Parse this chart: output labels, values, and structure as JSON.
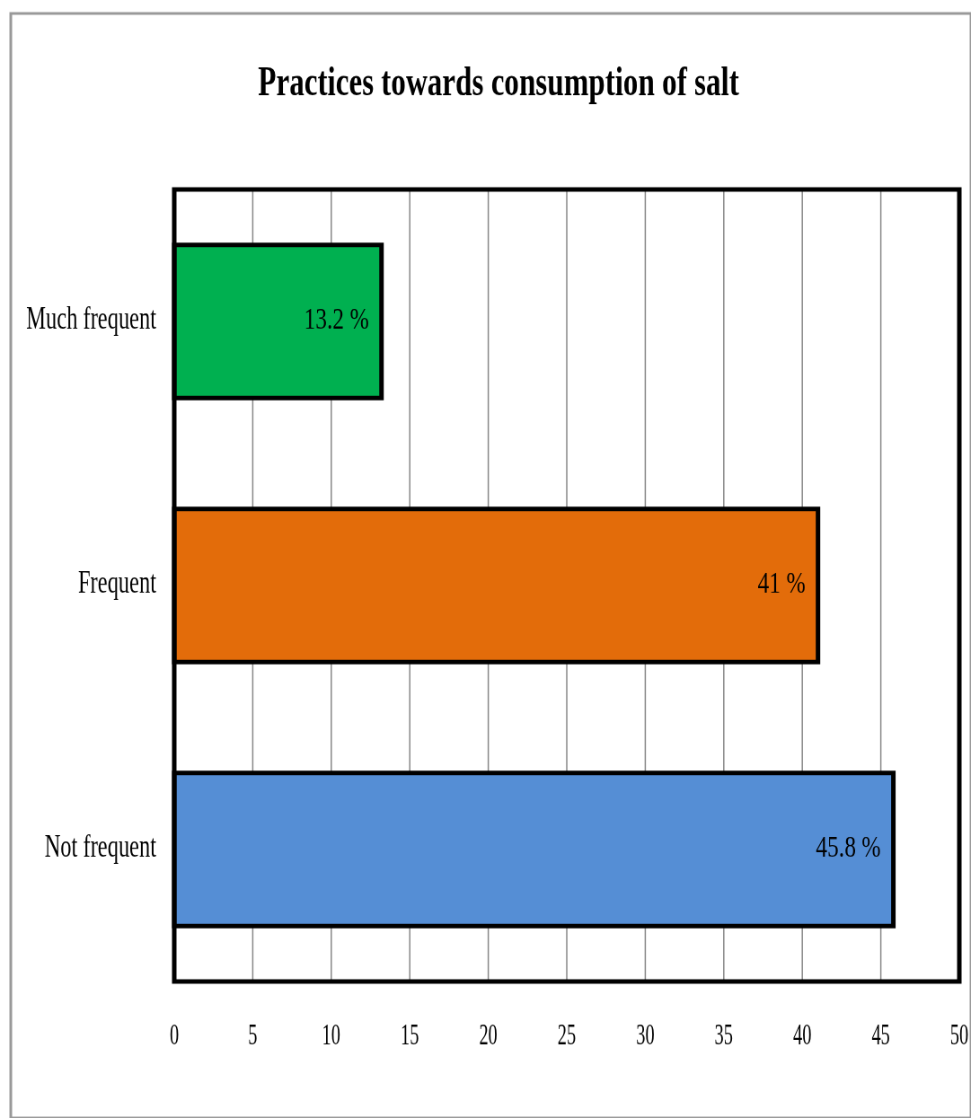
{
  "chart_data": {
    "type": "bar",
    "orientation": "horizontal",
    "title": "Practices towards  consumption of salt",
    "categories": [
      "Much frequent",
      "Frequent",
      "Not frequent"
    ],
    "values": [
      13.2,
      41,
      45.8
    ],
    "colors": [
      "#00b050",
      "#e36c0a",
      "#558ed5"
    ],
    "value_labels": [
      "13.2 %",
      "41 %",
      "45.8 %"
    ],
    "xlim": [
      0,
      50
    ],
    "xticks": [
      0,
      5,
      10,
      15,
      20,
      25,
      30,
      35,
      40,
      45,
      50
    ],
    "grid": "x"
  }
}
